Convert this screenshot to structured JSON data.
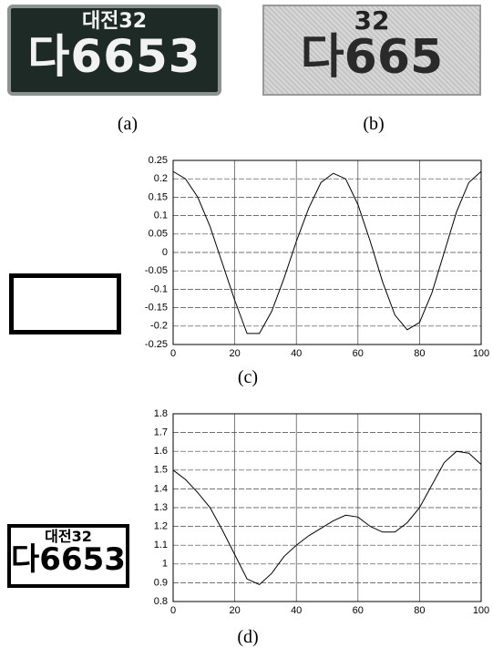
{
  "figure": {
    "captions": [
      "(a)",
      "(b)",
      "(c)",
      "(d)"
    ],
    "plates": [
      {
        "region": "대전32",
        "number": "다6653"
      },
      {
        "region": "32",
        "number": "다665"
      },
      {
        "region": "대전32",
        "number": "다6653"
      }
    ]
  },
  "chart_data": [
    {
      "type": "line",
      "x": [
        0,
        4,
        8,
        12,
        16,
        20,
        24,
        28,
        32,
        36,
        40,
        44,
        48,
        52,
        56,
        60,
        64,
        68,
        72,
        76,
        80,
        84,
        88,
        92,
        96,
        100
      ],
      "series": [
        {
          "color": "#000000",
          "values": [
            0.22,
            0.2,
            0.15,
            0.07,
            -0.03,
            -0.13,
            -0.22,
            -0.22,
            -0.16,
            -0.07,
            0.03,
            0.12,
            0.19,
            0.215,
            0.2,
            0.13,
            0.03,
            -0.08,
            -0.17,
            -0.21,
            -0.19,
            -0.11,
            0.0,
            0.11,
            0.19,
            0.22
          ]
        }
      ],
      "xlim": [
        0,
        100
      ],
      "xticks": [
        0,
        20,
        40,
        60,
        80,
        100
      ],
      "ylim": [
        -0.25,
        0.25
      ],
      "yticks": [
        -0.25,
        -0.2,
        -0.15,
        -0.1,
        -0.05,
        0,
        0.05,
        0.1,
        0.15,
        0.2,
        0.25
      ],
      "grid": true
    },
    {
      "type": "line",
      "x": [
        0,
        4,
        8,
        12,
        16,
        20,
        24,
        28,
        32,
        36,
        40,
        44,
        48,
        52,
        56,
        60,
        64,
        68,
        72,
        76,
        80,
        84,
        88,
        92,
        96,
        100
      ],
      "series": [
        {
          "color": "#000000",
          "values": [
            1.5,
            1.45,
            1.38,
            1.3,
            1.18,
            1.05,
            0.92,
            0.89,
            0.95,
            1.04,
            1.1,
            1.15,
            1.19,
            1.23,
            1.26,
            1.25,
            1.2,
            1.17,
            1.17,
            1.22,
            1.3,
            1.42,
            1.54,
            1.6,
            1.59,
            1.53
          ]
        }
      ],
      "xlim": [
        0,
        100
      ],
      "xticks": [
        0,
        20,
        40,
        60,
        80,
        100
      ],
      "ylim": [
        0.8,
        1.8
      ],
      "yticks": [
        0.8,
        0.9,
        1,
        1.1,
        1.2,
        1.3,
        1.4,
        1.5,
        1.6,
        1.7,
        1.8
      ],
      "grid": true
    }
  ]
}
